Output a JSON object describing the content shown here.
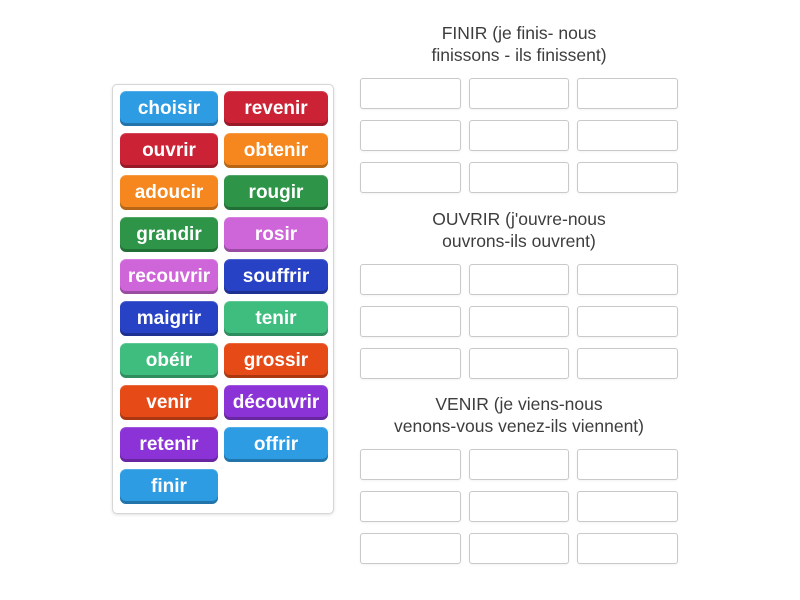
{
  "page": {
    "background": "#ffffff"
  },
  "word_bank": {
    "tiles": [
      {
        "label": "choisir",
        "color": "#2d9ce3"
      },
      {
        "label": "revenir",
        "color": "#cb2236"
      },
      {
        "label": "ouvrir",
        "color": "#cb2236"
      },
      {
        "label": "obtenir",
        "color": "#f5871e"
      },
      {
        "label": "adoucir",
        "color": "#f5871e"
      },
      {
        "label": "rougir",
        "color": "#2e9447"
      },
      {
        "label": "grandir",
        "color": "#2e9447"
      },
      {
        "label": "rosir",
        "color": "#ce66da"
      },
      {
        "label": "recouvrir",
        "color": "#ce66da"
      },
      {
        "label": "souffrir",
        "color": "#2742c5"
      },
      {
        "label": "maigrir",
        "color": "#2742c5"
      },
      {
        "label": "tenir",
        "color": "#3ebd7e"
      },
      {
        "label": "obéir",
        "color": "#3ebd7e"
      },
      {
        "label": "grossir",
        "color": "#e54a17"
      },
      {
        "label": "venir",
        "color": "#e54a17"
      },
      {
        "label": "découvrir",
        "color": "#8b33d6"
      },
      {
        "label": "retenir",
        "color": "#8b33d6"
      },
      {
        "label": "offrir",
        "color": "#2d9ce3"
      },
      {
        "label": "finir",
        "color": "#2d9ce3"
      }
    ]
  },
  "groups": [
    {
      "id": "finir",
      "header_line1": "FINIR (je finis- nous",
      "header_line2": "finissons - ils finissent)",
      "slots": 9
    },
    {
      "id": "ouvrir",
      "header_line1": "OUVRIR (j'ouvre-nous",
      "header_line2": "ouvrons-ils ouvrent)",
      "slots": 9
    },
    {
      "id": "venir",
      "header_line1": "VENIR (je viens-nous",
      "header_line2": "venons-vous venez-ils viennent)",
      "slots": 9
    }
  ]
}
